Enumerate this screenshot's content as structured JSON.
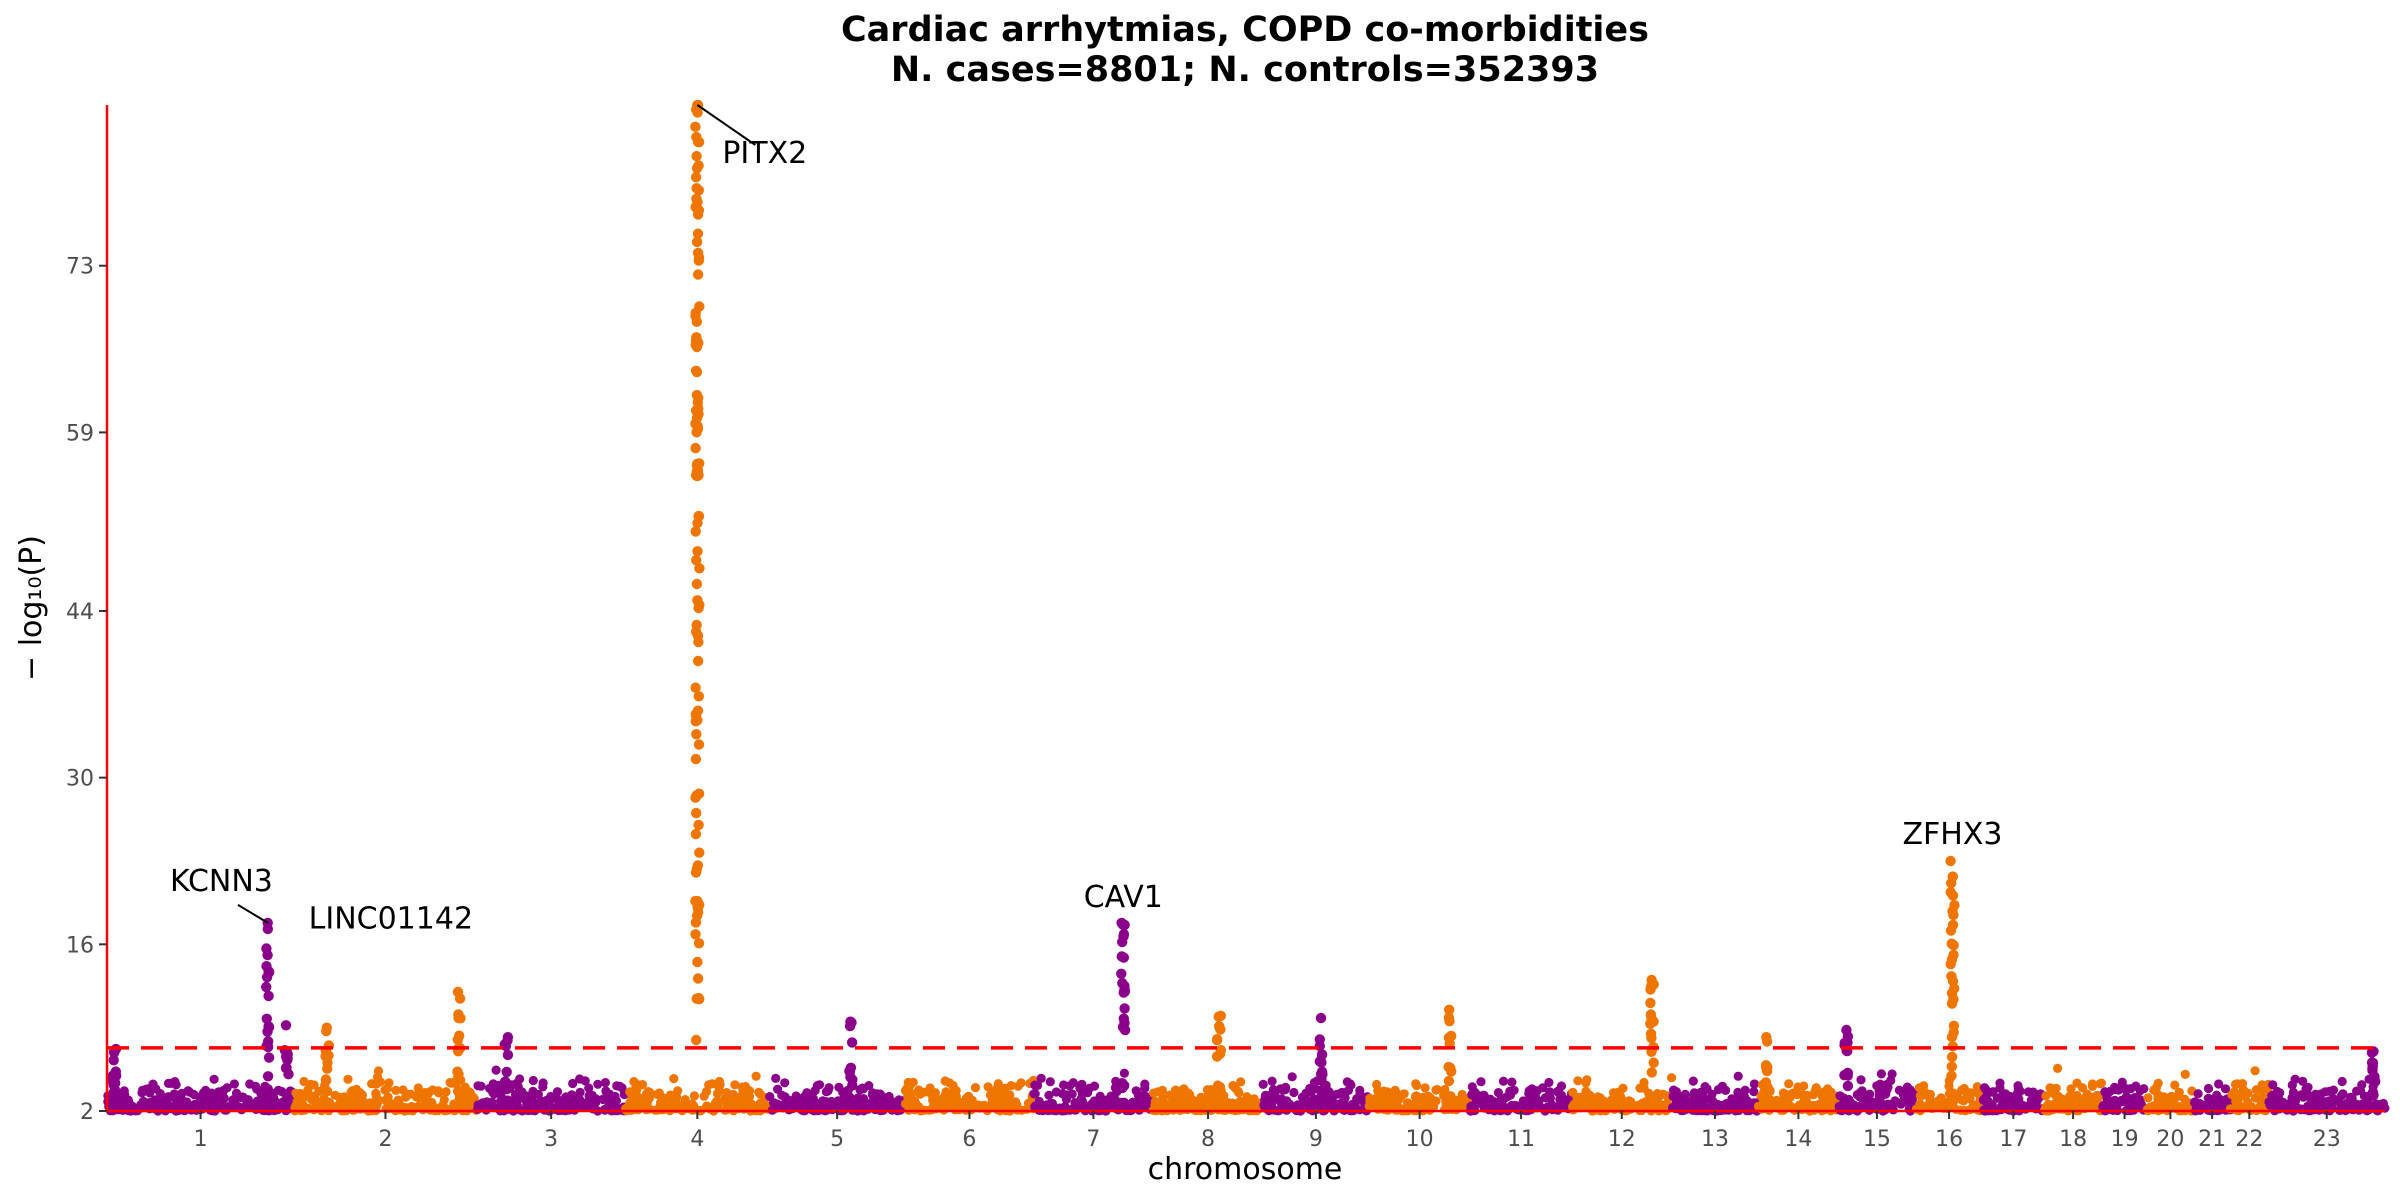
{
  "chart_data": {
    "type": "scatter",
    "subtype": "manhattan",
    "title_line1": "Cardiac arrhytmias, COPD co-morbidities",
    "title_line2": "N. cases=8801; N. controls=352393",
    "xlabel": "chromosome",
    "ylabel": "− log₁₀(P)",
    "ylim": [
      2,
      86.5
    ],
    "yticks": [
      2,
      16,
      30,
      44,
      59,
      73
    ],
    "significance_threshold": 7.3,
    "colors": {
      "odd": "#8B008B",
      "even": "#EE7600",
      "threshold": "#FF0000",
      "axis": "#FF0000"
    },
    "chromosomes": [
      {
        "label": "1",
        "length": 249
      },
      {
        "label": "2",
        "length": 243
      },
      {
        "label": "3",
        "length": 198
      },
      {
        "label": "4",
        "length": 191
      },
      {
        "label": "5",
        "length": 181
      },
      {
        "label": "6",
        "length": 171
      },
      {
        "label": "7",
        "length": 159
      },
      {
        "label": "8",
        "length": 146
      },
      {
        "label": "9",
        "length": 141
      },
      {
        "label": "10",
        "length": 135
      },
      {
        "label": "11",
        "length": 135
      },
      {
        "label": "12",
        "length": 133
      },
      {
        "label": "13",
        "length": 115
      },
      {
        "label": "14",
        "length": 107
      },
      {
        "label": "15",
        "length": 102
      },
      {
        "label": "16",
        "length": 90
      },
      {
        "label": "17",
        "length": 81
      },
      {
        "label": "18",
        "length": 78
      },
      {
        "label": "19",
        "length": 59
      },
      {
        "label": "20",
        "length": 63
      },
      {
        "label": "21",
        "length": 48
      },
      {
        "label": "22",
        "length": 51
      },
      {
        "label": "23",
        "length": 155
      }
    ],
    "peaks": [
      {
        "chr": 0,
        "pos": 0.04,
        "top": 7.2
      },
      {
        "chr": 0,
        "pos": 0.86,
        "top": 17.8
      },
      {
        "chr": 0,
        "pos": 0.96,
        "top": 9.2
      },
      {
        "chr": 1,
        "pos": 0.18,
        "top": 9.0
      },
      {
        "chr": 1,
        "pos": 0.9,
        "top": 12.0
      },
      {
        "chr": 2,
        "pos": 0.2,
        "top": 8.2
      },
      {
        "chr": 3,
        "pos": 0.5,
        "top": 86.5
      },
      {
        "chr": 4,
        "pos": 0.6,
        "top": 9.5
      },
      {
        "chr": 6,
        "pos": 0.75,
        "top": 17.8
      },
      {
        "chr": 7,
        "pos": 0.6,
        "top": 10.0
      },
      {
        "chr": 8,
        "pos": 0.55,
        "top": 9.8
      },
      {
        "chr": 9,
        "pos": 0.8,
        "top": 10.5
      },
      {
        "chr": 11,
        "pos": 0.8,
        "top": 13.0
      },
      {
        "chr": 13,
        "pos": 0.1,
        "top": 8.2
      },
      {
        "chr": 14,
        "pos": 0.1,
        "top": 8.8
      },
      {
        "chr": 15,
        "pos": 0.55,
        "top": 23.0
      },
      {
        "chr": 22,
        "pos": 0.9,
        "top": 7.0
      }
    ],
    "labels": [
      {
        "text": "KCNN3",
        "chr": 0,
        "pos": 0.86,
        "y": 17.8
      },
      {
        "text": "LINC01142",
        "chr": 0,
        "pos": 0.96,
        "y": 17.0
      },
      {
        "text": "PITX2",
        "chr": 3,
        "pos": 0.5,
        "y": 86.5
      },
      {
        "text": "CAV1",
        "chr": 6,
        "pos": 0.75,
        "y": 17.8
      },
      {
        "text": "ZFHX3",
        "chr": 15,
        "pos": 0.55,
        "y": 23.0
      }
    ]
  }
}
